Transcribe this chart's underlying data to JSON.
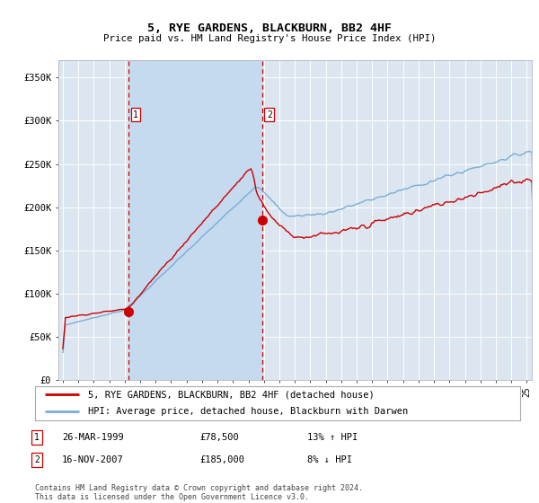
{
  "title": "5, RYE GARDENS, BLACKBURN, BB2 4HF",
  "subtitle": "Price paid vs. HM Land Registry's House Price Index (HPI)",
  "background_color": "#ffffff",
  "plot_bg_color": "#dce6f1",
  "grid_color": "#ffffff",
  "shaded_region_color": "#c5d9ef",
  "yticks": [
    0,
    50000,
    100000,
    150000,
    200000,
    250000,
    300000,
    350000
  ],
  "ytick_labels": [
    "£0",
    "£50K",
    "£100K",
    "£150K",
    "£200K",
    "£250K",
    "£300K",
    "£350K"
  ],
  "xmin": 1994.7,
  "xmax": 2025.3,
  "ymin": 0,
  "ymax": 370000,
  "red_line_color": "#cc0000",
  "blue_line_color": "#7aadd4",
  "marker1_x": 1999.23,
  "marker1_y": 78500,
  "marker2_x": 2007.88,
  "marker2_y": 185000,
  "marker_color": "#cc0000",
  "marker_size": 7,
  "vline1_x": 1999.23,
  "vline2_x": 2007.88,
  "vline_color": "#cc0000",
  "legend_label_red": "5, RYE GARDENS, BLACKBURN, BB2 4HF (detached house)",
  "legend_label_blue": "HPI: Average price, detached house, Blackburn with Darwen",
  "note1_date": "26-MAR-1999",
  "note1_price": "£78,500",
  "note1_hpi": "13% ↑ HPI",
  "note2_date": "16-NOV-2007",
  "note2_price": "£185,000",
  "note2_hpi": "8% ↓ HPI",
  "footer": "Contains HM Land Registry data © Crown copyright and database right 2024.\nThis data is licensed under the Open Government Licence v3.0."
}
